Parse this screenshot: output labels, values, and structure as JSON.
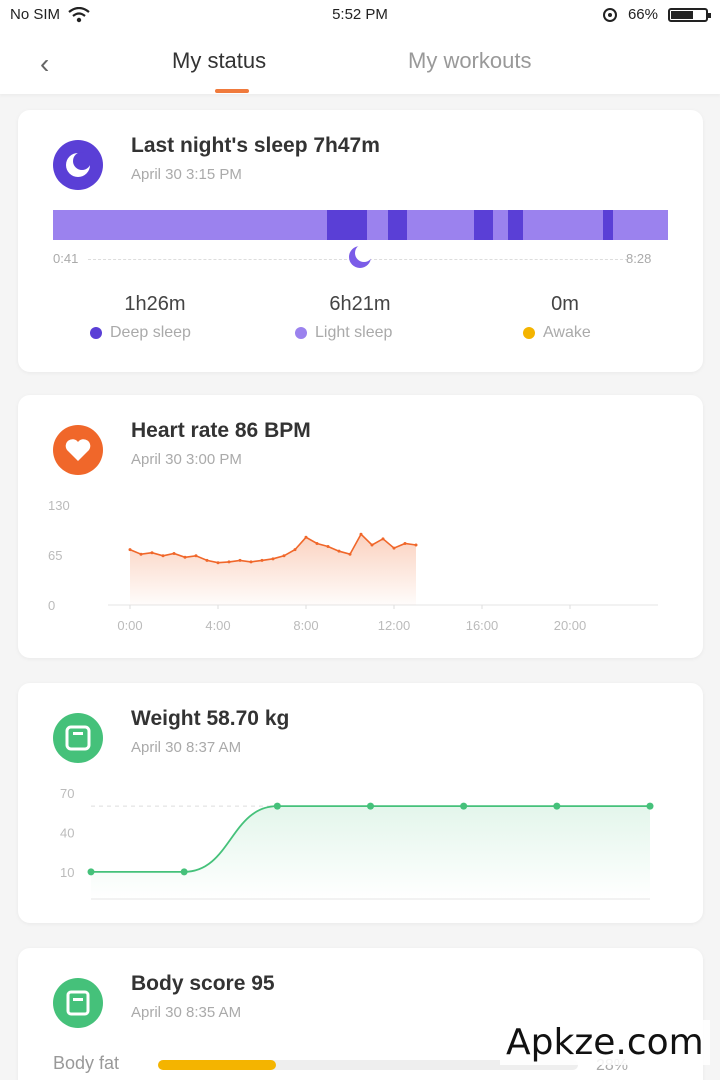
{
  "status_bar": {
    "carrier": "No SIM",
    "time": "5:52 PM",
    "battery_text": "66%",
    "battery_level": 0.66
  },
  "header": {
    "tabs": [
      {
        "label": "My status",
        "active": true
      },
      {
        "label": "My workouts",
        "active": false
      }
    ],
    "accent_color": "#f07a3c"
  },
  "sleep": {
    "title": "Last night's sleep 7h47m",
    "subtitle": "April 30 3:15 PM",
    "start_time": "0:41",
    "end_time": "8:28",
    "stats": [
      {
        "value": "1h26m",
        "label": "Deep sleep",
        "color": "#5a3fd6"
      },
      {
        "value": "6h21m",
        "label": "Light sleep",
        "color": "#9b82ee"
      },
      {
        "value": "0m",
        "label": "Awake",
        "color": "#f4b400"
      }
    ],
    "deep_sleep_segments": [
      [
        0.445,
        0.51
      ],
      [
        0.545,
        0.575
      ],
      [
        0.685,
        0.715
      ],
      [
        0.74,
        0.765
      ],
      [
        0.895,
        0.91
      ]
    ]
  },
  "heart_rate": {
    "title": "Heart rate 86  BPM",
    "subtitle": "April 30 3:00 PM",
    "color": "#f0672a"
  },
  "weight": {
    "title": "Weight 58.70 kg",
    "subtitle": "April 30 8:37 AM",
    "color": "#45c17a"
  },
  "body_score": {
    "title": "Body score 95",
    "subtitle": "April 30 8:35 AM",
    "color": "#45c17a",
    "bar_label": "Body fat",
    "bar_value_text": "28%",
    "bar_level": 0.28
  },
  "watermark": "Apkze.com",
  "chart_data": [
    {
      "type": "area",
      "x": [
        0.0,
        0.5,
        1.0,
        1.5,
        2.0,
        2.5,
        3.0,
        3.5,
        4.0,
        4.5,
        5.0,
        5.5,
        6.0,
        6.5,
        7.0,
        7.5,
        8.0,
        8.5,
        9.0,
        9.5,
        10.0,
        10.5,
        11.0,
        11.5,
        12.0,
        12.5,
        13.0
      ],
      "y": [
        72,
        66,
        68,
        64,
        67,
        62,
        64,
        58,
        55,
        56,
        58,
        56,
        58,
        60,
        64,
        72,
        88,
        80,
        76,
        70,
        66,
        92,
        78,
        86,
        74,
        80,
        78
      ],
      "xticks": [
        "0:00",
        "4:00",
        "8:00",
        "12:00",
        "16:00",
        "20:00"
      ],
      "xtick_values": [
        0,
        4,
        8,
        12,
        16,
        20
      ],
      "yticks": [
        "130",
        "65",
        "0"
      ],
      "ytick_values": [
        130,
        65,
        0
      ],
      "xlim": [
        -1,
        24
      ],
      "ylim": [
        0,
        130
      ],
      "color": "#f0672a"
    },
    {
      "type": "line",
      "x": [
        1,
        2,
        3,
        4,
        5,
        6,
        7
      ],
      "y": [
        10,
        10,
        60,
        60,
        60,
        60,
        60
      ],
      "yticks": [
        "70",
        "40",
        "10"
      ],
      "ytick_values": [
        70,
        40,
        10
      ],
      "ylim": [
        0,
        70
      ],
      "color": "#45c17a"
    }
  ]
}
